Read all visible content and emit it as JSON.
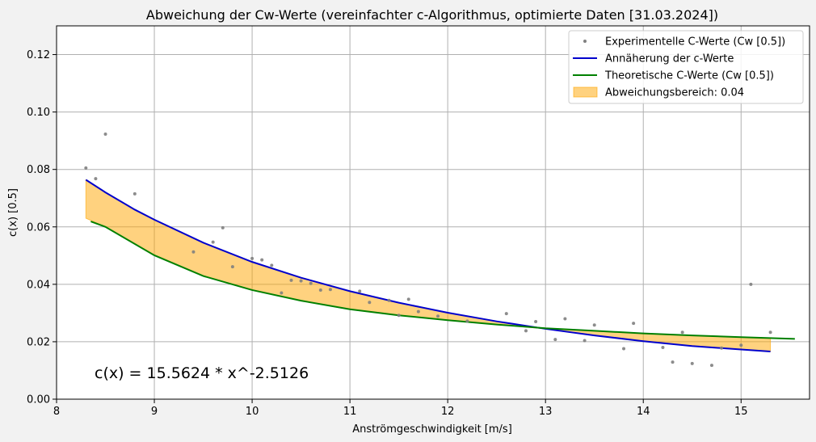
{
  "chart_data": {
    "type": "scatter",
    "title": "Abweichung der Cw-Werte (vereinfachter c-Algorithmus, optimierte Daten [31.03.2024])",
    "xlabel": "Anströmgeschwindigkeit [m/s]",
    "ylabel": "c(x) [0.5]",
    "xlim": [
      8,
      15.7
    ],
    "ylim": [
      0,
      0.13
    ],
    "xticks": [
      8,
      9,
      10,
      11,
      12,
      13,
      14,
      15
    ],
    "yticks": [
      0.0,
      0.02,
      0.04,
      0.06,
      0.08,
      0.1,
      0.12
    ],
    "ytick_labels": [
      "0.00",
      "0.02",
      "0.04",
      "0.06",
      "0.08",
      "0.10",
      "0.12"
    ],
    "grid": true,
    "legend_position": "top-right",
    "annotation": "c(x) = 15.5624 * x^-2.5126",
    "colors": {
      "points": "#808080",
      "fit": "#0000cc",
      "theory": "#008000",
      "band": "#ffa500"
    },
    "legend": [
      {
        "label": "Experimentelle C-Werte (Cw [0.5])",
        "kind": "point",
        "color": "#808080"
      },
      {
        "label": "Annäherung der c-Werte",
        "kind": "line",
        "color": "#0000cc"
      },
      {
        "label": "Theoretische C-Werte (Cw [0.5])",
        "kind": "line",
        "color": "#008000"
      },
      {
        "label": "Abweichungsbereich: 0.04",
        "kind": "patch",
        "color": "#ffa500"
      }
    ],
    "series": [
      {
        "name": "Experimentelle C-Werte (Cw [0.5])",
        "type": "scatter",
        "points": [
          [
            8.3,
            0.0805
          ],
          [
            8.4,
            0.0768
          ],
          [
            8.5,
            0.0923
          ],
          [
            8.8,
            0.0715
          ],
          [
            9.4,
            0.0513
          ],
          [
            9.6,
            0.0547
          ],
          [
            9.7,
            0.0597
          ],
          [
            9.8,
            0.0461
          ],
          [
            10.0,
            0.049
          ],
          [
            10.1,
            0.0485
          ],
          [
            10.2,
            0.0466
          ],
          [
            10.3,
            0.037
          ],
          [
            10.4,
            0.0414
          ],
          [
            10.5,
            0.0412
          ],
          [
            10.6,
            0.0403
          ],
          [
            10.7,
            0.038
          ],
          [
            10.8,
            0.0382
          ],
          [
            11.1,
            0.0376
          ],
          [
            11.2,
            0.0337
          ],
          [
            11.4,
            0.0344
          ],
          [
            11.5,
            0.0292
          ],
          [
            11.6,
            0.0348
          ],
          [
            11.7,
            0.0305
          ],
          [
            11.9,
            0.0289
          ],
          [
            12.2,
            0.0272
          ],
          [
            12.6,
            0.0298
          ],
          [
            12.8,
            0.0238
          ],
          [
            12.9,
            0.027
          ],
          [
            13.1,
            0.0208
          ],
          [
            13.2,
            0.028
          ],
          [
            13.4,
            0.0204
          ],
          [
            13.5,
            0.0258
          ],
          [
            13.8,
            0.0176
          ],
          [
            13.9,
            0.0264
          ],
          [
            14.2,
            0.018
          ],
          [
            14.3,
            0.0129
          ],
          [
            14.4,
            0.0233
          ],
          [
            14.5,
            0.0124
          ],
          [
            14.7,
            0.0118
          ],
          [
            14.8,
            0.0178
          ],
          [
            15.0,
            0.0188
          ],
          [
            15.1,
            0.04
          ],
          [
            15.3,
            0.0233
          ]
        ]
      },
      {
        "name": "Annäherung der c-Werte",
        "type": "line",
        "points": [
          [
            8.3,
            0.0764
          ],
          [
            8.5,
            0.072
          ],
          [
            8.8,
            0.066
          ],
          [
            9.0,
            0.0625
          ],
          [
            9.5,
            0.0545
          ],
          [
            10.0,
            0.0478
          ],
          [
            10.5,
            0.0423
          ],
          [
            11.0,
            0.0376
          ],
          [
            11.5,
            0.0336
          ],
          [
            12.0,
            0.0301
          ],
          [
            12.5,
            0.0271
          ],
          [
            13.0,
            0.0245
          ],
          [
            13.5,
            0.0222
          ],
          [
            14.0,
            0.0202
          ],
          [
            14.5,
            0.0185
          ],
          [
            15.0,
            0.0173
          ],
          [
            15.3,
            0.0166
          ]
        ]
      },
      {
        "name": "Theoretische C-Werte (Cw [0.5])",
        "type": "line",
        "points": [
          [
            8.35,
            0.0619
          ],
          [
            8.5,
            0.06
          ],
          [
            9.0,
            0.0501
          ],
          [
            9.5,
            0.0429
          ],
          [
            10.0,
            0.038
          ],
          [
            10.5,
            0.0343
          ],
          [
            11.0,
            0.0313
          ],
          [
            11.5,
            0.0292
          ],
          [
            12.0,
            0.0275
          ],
          [
            12.5,
            0.026
          ],
          [
            13.0,
            0.0247
          ],
          [
            13.5,
            0.0238
          ],
          [
            14.0,
            0.0229
          ],
          [
            14.5,
            0.0222
          ],
          [
            15.0,
            0.0216
          ],
          [
            15.55,
            0.021
          ]
        ]
      },
      {
        "name": "Abweichungsbereich: 0.04",
        "type": "band",
        "upper": [
          [
            8.3,
            0.0764
          ],
          [
            8.5,
            0.072
          ],
          [
            8.8,
            0.066
          ],
          [
            9.0,
            0.0625
          ],
          [
            9.5,
            0.0545
          ],
          [
            10.0,
            0.0478
          ],
          [
            10.5,
            0.0423
          ],
          [
            11.0,
            0.0376
          ],
          [
            11.5,
            0.0336
          ],
          [
            12.0,
            0.0301
          ],
          [
            12.5,
            0.0271
          ],
          [
            13.0,
            0.0245
          ],
          [
            13.5,
            0.0238
          ],
          [
            14.0,
            0.0229
          ],
          [
            14.5,
            0.0222
          ],
          [
            15.0,
            0.0216
          ],
          [
            15.3,
            0.0213
          ]
        ],
        "lower": [
          [
            8.3,
            0.063
          ],
          [
            8.5,
            0.06
          ],
          [
            9.0,
            0.0501
          ],
          [
            9.5,
            0.0429
          ],
          [
            10.0,
            0.038
          ],
          [
            10.5,
            0.0343
          ],
          [
            11.0,
            0.0313
          ],
          [
            11.5,
            0.0292
          ],
          [
            12.0,
            0.0275
          ],
          [
            12.5,
            0.026
          ],
          [
            13.0,
            0.0245
          ],
          [
            13.5,
            0.0222
          ],
          [
            14.0,
            0.0202
          ],
          [
            14.5,
            0.0185
          ],
          [
            15.0,
            0.0173
          ],
          [
            15.3,
            0.0166
          ]
        ]
      }
    ]
  }
}
